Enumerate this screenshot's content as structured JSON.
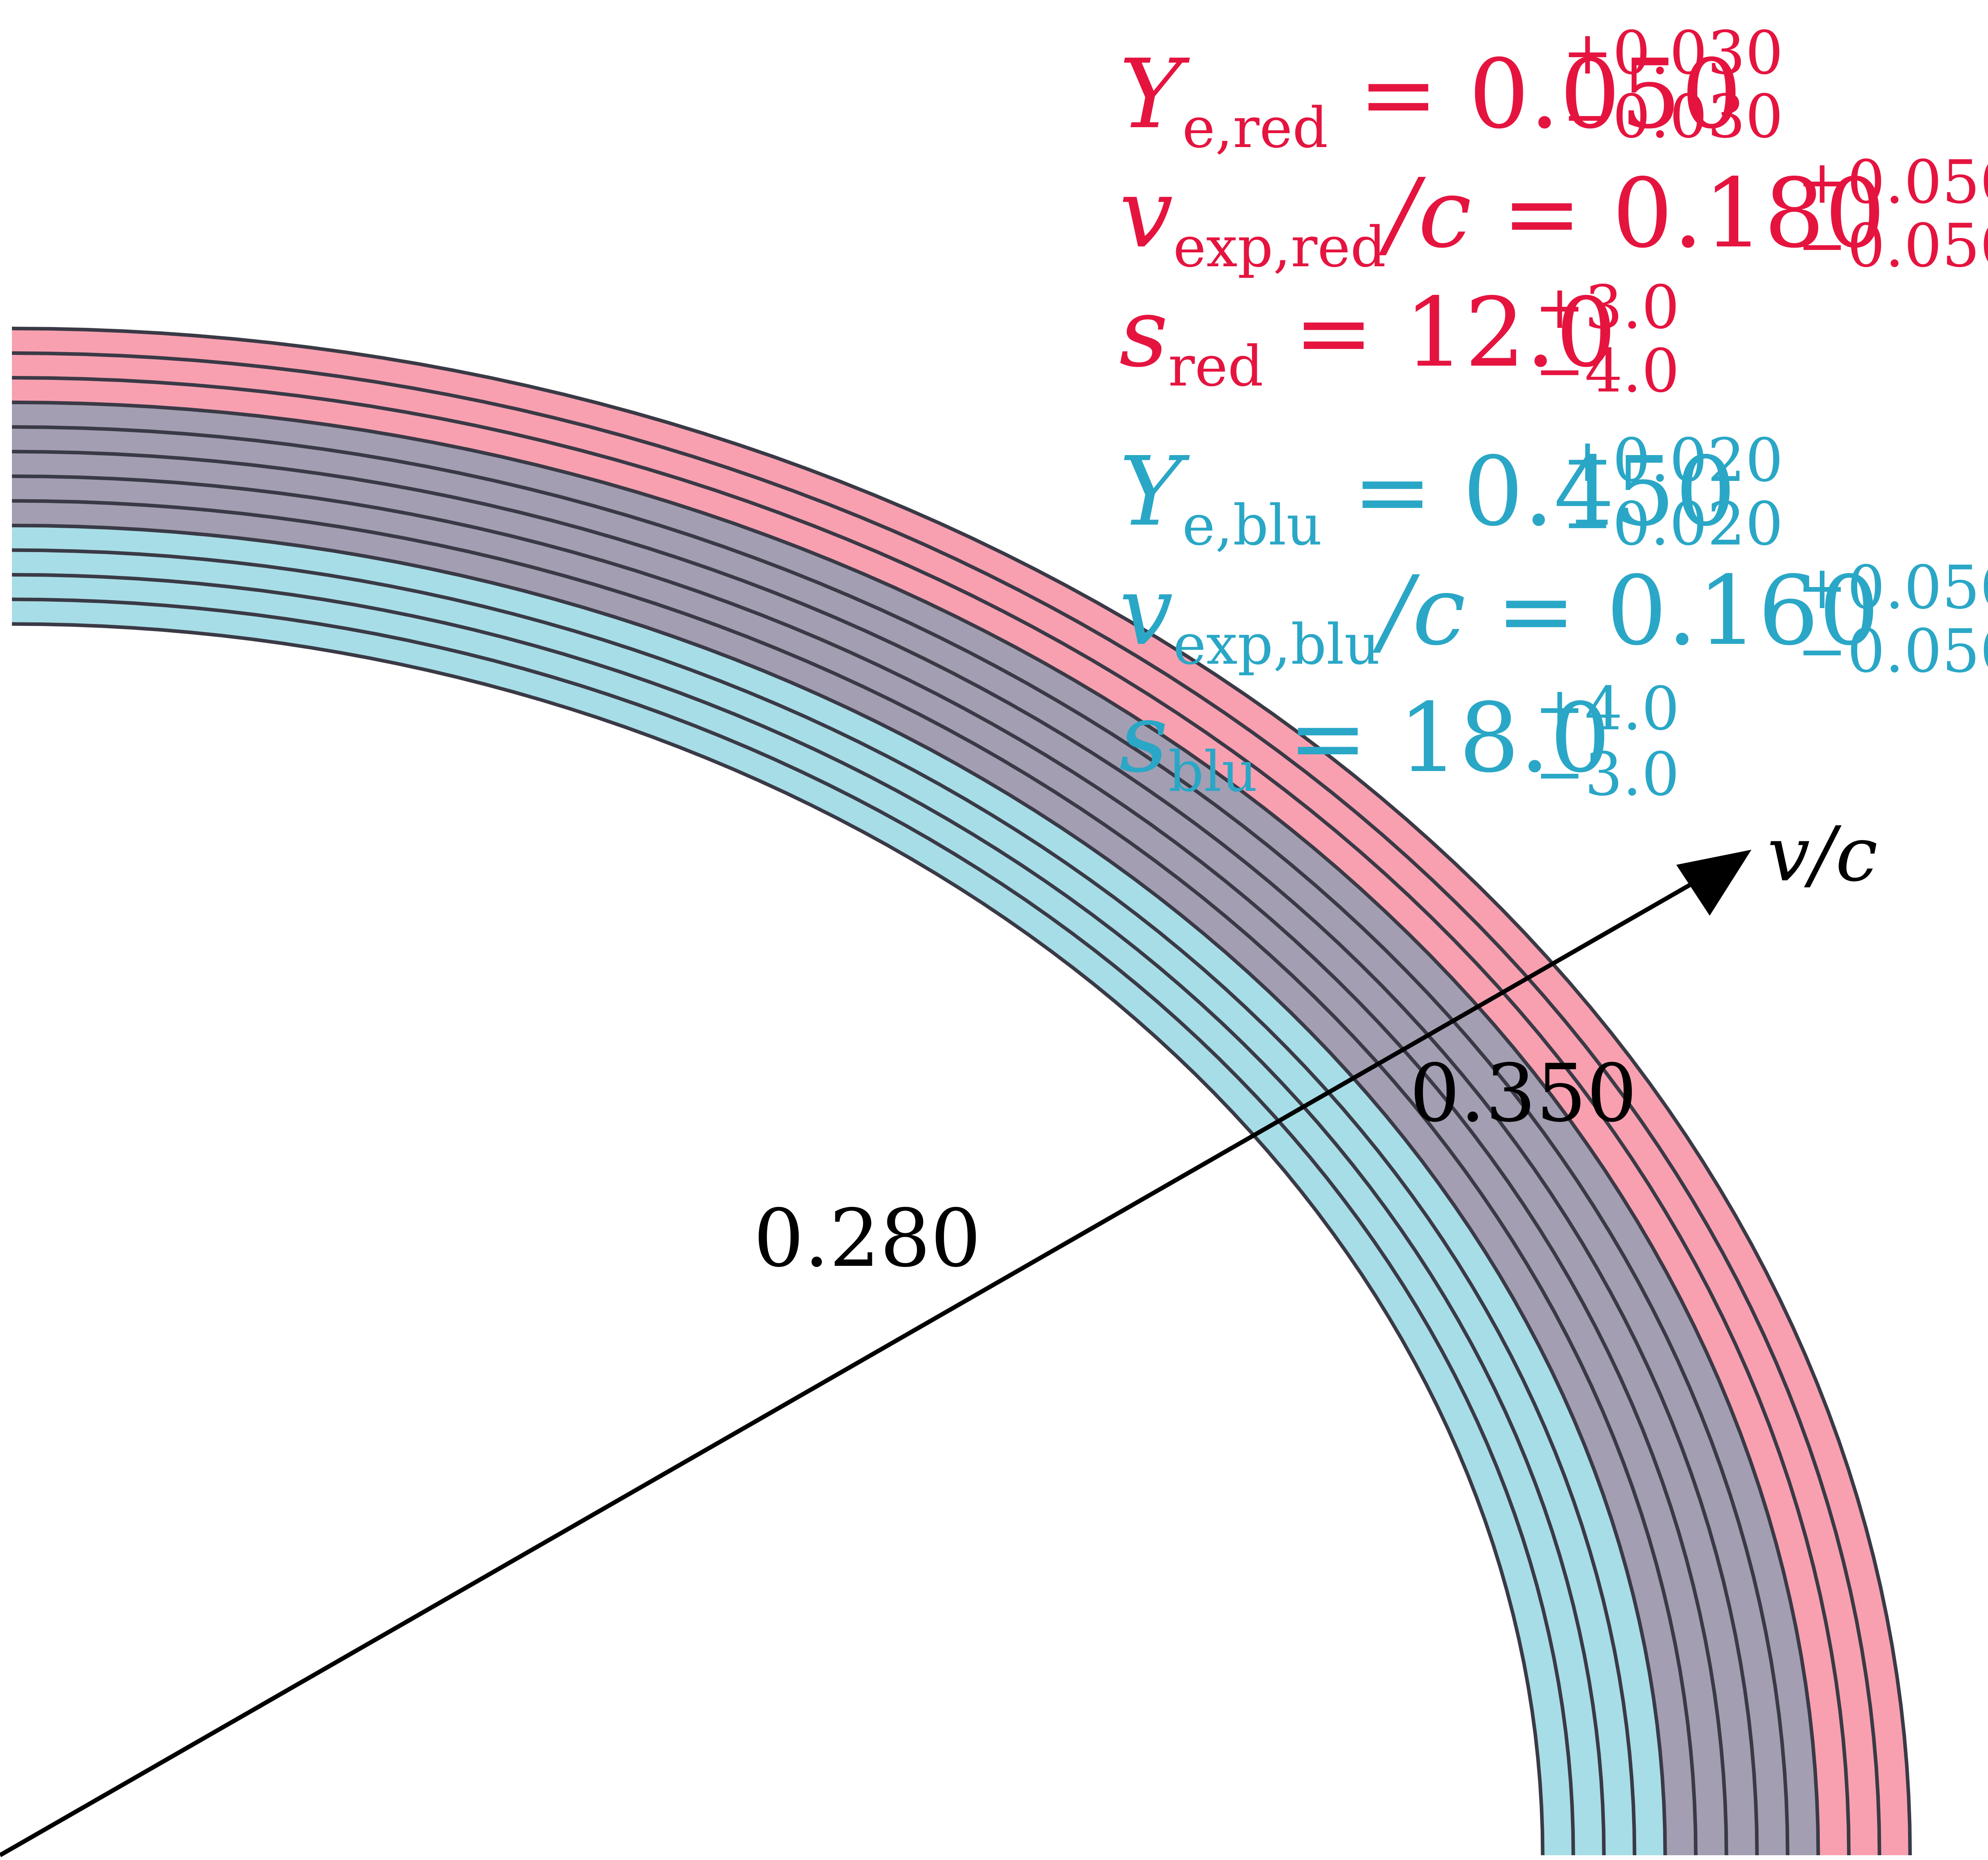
{
  "colors": {
    "red": "#e5143f",
    "blue": "#2aa7c6",
    "red_fill": "#f8a0b0",
    "blue_fill": "#a7dde7",
    "overlap_fill": "#a39eb2",
    "ring_line": "#3a3a46",
    "axis": "#000000"
  },
  "components": [
    {
      "id": "red",
      "symbol_Ye": "Y",
      "sub_Ye": "e,red",
      "Ye": "0.050",
      "Ye_plus": "+0.030",
      "Ye_minus": "−0.030",
      "symbol_v": "v",
      "sub_v": "exp,red",
      "v_over": "/c",
      "v": "0.180",
      "v_plus": "+0.050",
      "v_minus": "−0.050",
      "symbol_s": "s",
      "sub_s": "red",
      "s": "12.0",
      "s_plus": "+3.0",
      "s_minus": "−4.0"
    },
    {
      "id": "blue",
      "symbol_Ye": "Y",
      "sub_Ye": "e,blu",
      "Ye": "0.450",
      "Ye_plus": "+0.020",
      "Ye_minus": "−0.020",
      "symbol_v": "v",
      "sub_v": "exp,blu",
      "v_over": "/c",
      "v": "0.160",
      "v_plus": "+0.050",
      "v_minus": "−0.050",
      "symbol_s": "s",
      "sub_s": "blu",
      "s": "18.0",
      "s_plus": "+4.0",
      "s_minus": "−3.0"
    }
  ],
  "axis": {
    "label_v": "v",
    "label_rest": "/c",
    "tick_inner": "0.280",
    "tick_outer": "0.350"
  },
  "shells": {
    "red_count": 9,
    "blue_count": 10,
    "overlap_count": 6
  }
}
